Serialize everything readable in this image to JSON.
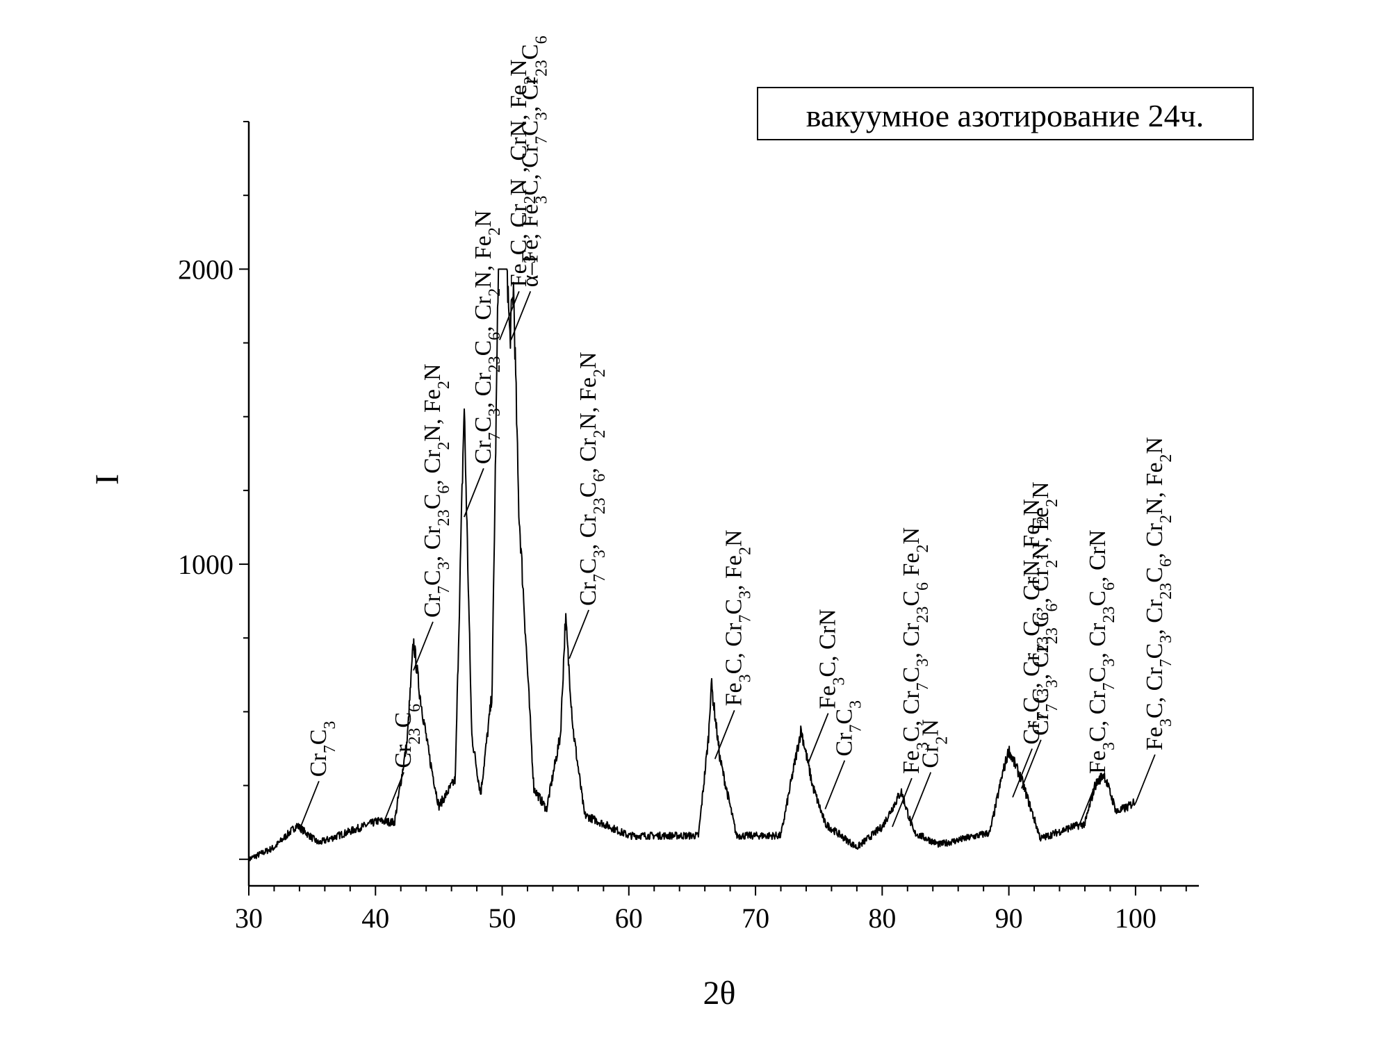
{
  "chart_data": {
    "type": "line",
    "title": "вакуумное азотирование 24ч.",
    "xlabel": "2θ",
    "ylabel": "I",
    "xlim": [
      30,
      105
    ],
    "ylim": [
      -90,
      2500
    ],
    "xticks": [
      30,
      40,
      50,
      60,
      70,
      80,
      90,
      100
    ],
    "yticks": [
      1000,
      2000
    ],
    "grid": false,
    "legend": "top-right",
    "series_color": "#000000",
    "peaks": [
      {
        "x": 30.0,
        "y": 0
      },
      {
        "x": 32.0,
        "y": 40
      },
      {
        "x": 33.8,
        "y": 115
      },
      {
        "x": 35.5,
        "y": 55
      },
      {
        "x": 38.0,
        "y": 95
      },
      {
        "x": 40.2,
        "y": 130
      },
      {
        "x": 41.5,
        "y": 125
      },
      {
        "x": 42.5,
        "y": 400
      },
      {
        "x": 43.0,
        "y": 740
      },
      {
        "x": 43.5,
        "y": 560
      },
      {
        "x": 44.2,
        "y": 360
      },
      {
        "x": 45.0,
        "y": 180
      },
      {
        "x": 46.3,
        "y": 270
      },
      {
        "x": 47.0,
        "y": 1540
      },
      {
        "x": 47.6,
        "y": 420
      },
      {
        "x": 48.3,
        "y": 220
      },
      {
        "x": 49.2,
        "y": 560
      },
      {
        "x": 49.7,
        "y": 2000
      },
      {
        "x": 50.4,
        "y": 2000
      },
      {
        "x": 50.6,
        "y": 1760
      },
      {
        "x": 50.9,
        "y": 1940
      },
      {
        "x": 51.3,
        "y": 1200
      },
      {
        "x": 52.5,
        "y": 240
      },
      {
        "x": 53.5,
        "y": 170
      },
      {
        "x": 54.6,
        "y": 420
      },
      {
        "x": 55.0,
        "y": 820
      },
      {
        "x": 55.6,
        "y": 440
      },
      {
        "x": 56.5,
        "y": 150
      },
      {
        "x": 60.0,
        "y": 80
      },
      {
        "x": 65.5,
        "y": 80
      },
      {
        "x": 66.3,
        "y": 420
      },
      {
        "x": 66.5,
        "y": 600
      },
      {
        "x": 67.2,
        "y": 340
      },
      {
        "x": 68.5,
        "y": 80
      },
      {
        "x": 72.0,
        "y": 80
      },
      {
        "x": 73.6,
        "y": 440
      },
      {
        "x": 74.5,
        "y": 250
      },
      {
        "x": 75.5,
        "y": 120
      },
      {
        "x": 78.0,
        "y": 40
      },
      {
        "x": 80.0,
        "y": 110
      },
      {
        "x": 81.5,
        "y": 230
      },
      {
        "x": 82.5,
        "y": 90
      },
      {
        "x": 84.5,
        "y": 50
      },
      {
        "x": 88.5,
        "y": 90
      },
      {
        "x": 89.5,
        "y": 290
      },
      {
        "x": 90.0,
        "y": 370
      },
      {
        "x": 91.0,
        "y": 270
      },
      {
        "x": 92.5,
        "y": 70
      },
      {
        "x": 95.0,
        "y": 110
      },
      {
        "x": 96.0,
        "y": 120
      },
      {
        "x": 96.8,
        "y": 250
      },
      {
        "x": 97.5,
        "y": 290
      },
      {
        "x": 98.5,
        "y": 160
      },
      {
        "x": 99.5,
        "y": 180
      },
      {
        "x": 100.0,
        "y": 200
      }
    ],
    "annotations": [
      {
        "html": "Cr<tspan baseline-shift=\"sub\" font-size=\"24\">7</tspan>C<tspan baseline-shift=\"sub\" font-size=\"24\">3</tspan>",
        "plain": "Cr7C3",
        "x": 34.0,
        "y": 100
      },
      {
        "html": "Cr<tspan baseline-shift=\"sub\" font-size=\"24\">23</tspan>C<tspan baseline-shift=\"sub\" font-size=\"24\">6</tspan>",
        "plain": "Cr23C6",
        "x": 40.7,
        "y": 130
      },
      {
        "html": "Cr<tspan baseline-shift=\"sub\" font-size=\"24\">7</tspan>C<tspan baseline-shift=\"sub\" font-size=\"24\">3</tspan>, Cr<tspan baseline-shift=\"sub\" font-size=\"24\">23</tspan>C<tspan baseline-shift=\"sub\" font-size=\"24\">6</tspan>, Cr<tspan baseline-shift=\"sub\" font-size=\"24\">2</tspan>N, Fe<tspan baseline-shift=\"sub\" font-size=\"24\">2</tspan>N",
        "plain": "Cr7C3, Cr23C6, Cr2N, Fe2N",
        "x": 43.0,
        "y": 640
      },
      {
        "html": "Cr<tspan baseline-shift=\"sub\" font-size=\"24\">7</tspan>C<tspan baseline-shift=\"sub\" font-size=\"24\">3</tspan>, Cr<tspan baseline-shift=\"sub\" font-size=\"24\">23</tspan>C<tspan baseline-shift=\"sub\" font-size=\"24\">6</tspan>, Cr<tspan baseline-shift=\"sub\" font-size=\"24\">2</tspan>N, Fe<tspan baseline-shift=\"sub\" font-size=\"24\">2</tspan>N",
        "plain": "Cr7C3, Cr23C6, Cr2N, Fe2N",
        "x": 47.0,
        "y": 1160
      },
      {
        "html": "Fe<tspan baseline-shift=\"sub\" font-size=\"24\">3</tspan>C, Cr<tspan baseline-shift=\"sub\" font-size=\"24\">2</tspan>N , CrN, Fe<tspan baseline-shift=\"sub\" font-size=\"24\">2</tspan>N",
        "plain": "Fe3C, Cr2N , CrN, Fe2N",
        "x": 49.8,
        "y": 1760
      },
      {
        "html": "α–Fe, Fe<tspan baseline-shift=\"sub\" font-size=\"24\">3</tspan>C, Cr<tspan baseline-shift=\"sub\" font-size=\"24\">7</tspan>C<tspan baseline-shift=\"sub\" font-size=\"24\">3</tspan>, Cr<tspan baseline-shift=\"sub\" font-size=\"24\">23</tspan>C<tspan baseline-shift=\"sub\" font-size=\"24\">6</tspan>",
        "plain": "α–Fe, Fe3C, Cr7C3, Cr23C6",
        "x": 50.7,
        "y": 1760
      },
      {
        "html": "Cr<tspan baseline-shift=\"sub\" font-size=\"24\">7</tspan>C<tspan baseline-shift=\"sub\" font-size=\"24\">3</tspan>, Cr<tspan baseline-shift=\"sub\" font-size=\"24\">23</tspan>C<tspan baseline-shift=\"sub\" font-size=\"24\">6</tspan>, Cr<tspan baseline-shift=\"sub\" font-size=\"24\">2</tspan>N, Fe<tspan baseline-shift=\"sub\" font-size=\"24\">2</tspan>N",
        "plain": "Cr7C3, Cr23C6, Cr2N, Fe2N",
        "x": 55.3,
        "y": 680
      },
      {
        "html": "Fe<tspan baseline-shift=\"sub\" font-size=\"24\">3</tspan>C, Cr<tspan baseline-shift=\"sub\" font-size=\"24\">7</tspan>C<tspan baseline-shift=\"sub\" font-size=\"24\">3</tspan>, Fe<tspan baseline-shift=\"sub\" font-size=\"24\">2</tspan>N",
        "plain": "Fe3C, Cr7C3, Fe2N",
        "x": 66.8,
        "y": 340
      },
      {
        "html": "Fe<tspan baseline-shift=\"sub\" font-size=\"24\">3</tspan>C, CrN",
        "plain": "Fe3C, CrN",
        "x": 74.2,
        "y": 330
      },
      {
        "html": "Cr<tspan baseline-shift=\"sub\" font-size=\"24\">7</tspan>C<tspan baseline-shift=\"sub\" font-size=\"24\">3</tspan>",
        "plain": "Cr7C3",
        "x": 75.5,
        "y": 170
      },
      {
        "html": "Fe<tspan baseline-shift=\"sub\" font-size=\"24\">3</tspan>C, Cr<tspan baseline-shift=\"sub\" font-size=\"24\">7</tspan>C<tspan baseline-shift=\"sub\" font-size=\"24\">3</tspan>, Cr<tspan baseline-shift=\"sub\" font-size=\"24\">23</tspan>C<tspan baseline-shift=\"sub\" font-size=\"24\">6</tspan> Fe<tspan baseline-shift=\"sub\" font-size=\"24\">2</tspan>N",
        "plain": "Fe3C, Cr7C3, Cr23C6 Fe2N",
        "x": 80.8,
        "y": 110
      },
      {
        "html": "Cr<tspan baseline-shift=\"sub\" font-size=\"24\">2</tspan>N",
        "plain": "Cr2N",
        "x": 82.3,
        "y": 130
      },
      {
        "html": "Cr<tspan baseline-shift=\"sub\" font-size=\"24\">7</tspan>C<tspan baseline-shift=\"sub\" font-size=\"24\">3</tspan>, Cr<tspan baseline-shift=\"sub\" font-size=\"24\">23</tspan>C<tspan baseline-shift=\"sub\" font-size=\"24\">6</tspan>,  CrN, Fe<tspan baseline-shift=\"sub\" font-size=\"24\">2</tspan>N",
        "plain": "Cr7C3, Cr23C6,  CrN, Fe2N",
        "x": 90.3,
        "y": 210
      },
      {
        "html": "Cr<tspan baseline-shift=\"sub\" font-size=\"24\">7</tspan>C<tspan baseline-shift=\"sub\" font-size=\"24\">3</tspan>, Cr<tspan baseline-shift=\"sub\" font-size=\"24\">23</tspan>C<tspan baseline-shift=\"sub\" font-size=\"24\">6</tspan>, Cr<tspan baseline-shift=\"sub\" font-size=\"24\">2</tspan>N, Fe<tspan baseline-shift=\"sub\" font-size=\"24\">2</tspan>N",
        "plain": "Cr7C3, Cr23C6, Cr2N, Fe2N",
        "x": 91.0,
        "y": 240
      },
      {
        "html": "Fe<tspan baseline-shift=\"sub\" font-size=\"24\">3</tspan>C, Cr<tspan baseline-shift=\"sub\" font-size=\"24\">7</tspan>C<tspan baseline-shift=\"sub\" font-size=\"24\">3</tspan>, Cr<tspan baseline-shift=\"sub\" font-size=\"24\">23</tspan>C<tspan baseline-shift=\"sub\" font-size=\"24\">6</tspan>, CrN",
        "plain": "Fe3C, Cr7C3, Cr23C6, CrN",
        "x": 95.5,
        "y": 110
      },
      {
        "html": "Fe<tspan baseline-shift=\"sub\" font-size=\"24\">3</tspan>C, Cr<tspan baseline-shift=\"sub\" font-size=\"24\">7</tspan>C<tspan baseline-shift=\"sub\" font-size=\"24\">3</tspan>, Cr<tspan baseline-shift=\"sub\" font-size=\"24\">23</tspan>C<tspan baseline-shift=\"sub\" font-size=\"24\">6</tspan>, Cr<tspan baseline-shift=\"sub\" font-size=\"24\">2</tspan>N, Fe<tspan baseline-shift=\"sub\" font-size=\"24\">2</tspan>N",
        "plain": "Fe3C, Cr7C3, Cr23C6, Cr2N, Fe2N",
        "x": 100.0,
        "y": 190
      }
    ]
  }
}
